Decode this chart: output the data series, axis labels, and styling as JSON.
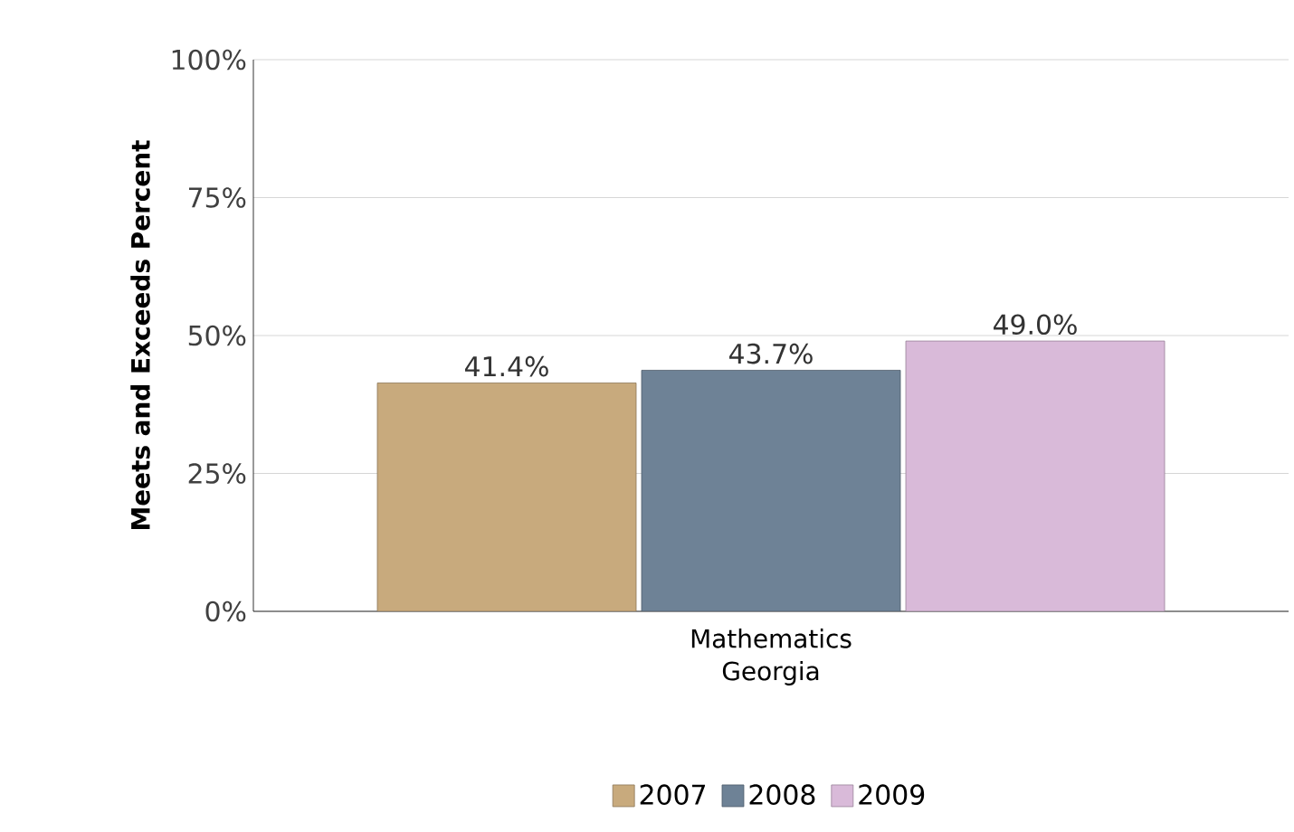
{
  "chart_data": {
    "type": "bar",
    "ylabel": "Meets and Exceeds Percent",
    "categories": [
      "Mathematics Georgia"
    ],
    "series": [
      {
        "name": "2007",
        "color": "#c8aa7d",
        "values": [
          41.4
        ],
        "value_labels": [
          "41.4%"
        ]
      },
      {
        "name": "2008",
        "color": "#6e8296",
        "values": [
          43.7
        ],
        "value_labels": [
          "43.7%"
        ]
      },
      {
        "name": "2009",
        "color": "#d9bad9",
        "values": [
          49.0
        ],
        "value_labels": [
          "49.0%"
        ]
      }
    ],
    "ylim": [
      0,
      100
    ],
    "yticks": [
      {
        "value": 0,
        "label": "0%"
      },
      {
        "value": 25,
        "label": "25%"
      },
      {
        "value": 50,
        "label": "50%"
      },
      {
        "value": 75,
        "label": "75%"
      },
      {
        "value": 100,
        "label": "100%"
      }
    ],
    "grid": "y",
    "legend": "bottom"
  }
}
